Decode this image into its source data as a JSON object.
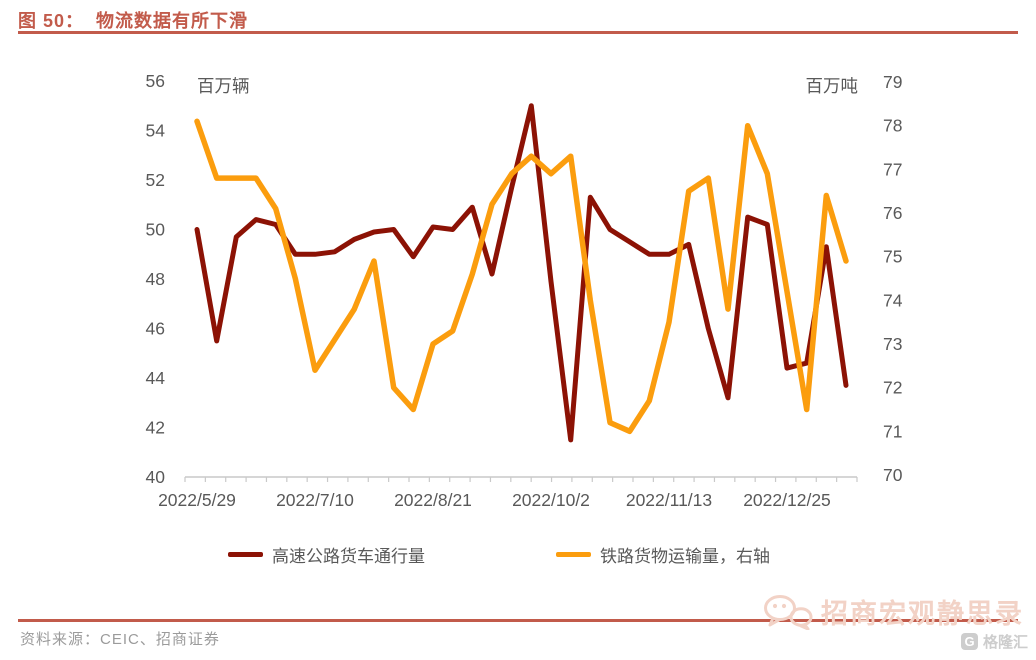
{
  "figure": {
    "title": "图 50：  物流数据有所下滑",
    "source_label": "资料来源：CEIC、招商证券",
    "watermark_text": "招商宏观静思录",
    "watermark_logo_badge": "G",
    "watermark_logo_text": "格隆汇",
    "accent_color": "#c25b4b",
    "axis_text_color": "#595959",
    "axis_line_color": "#c9c9c9",
    "source_text_color": "#9b9b9b"
  },
  "chart_data": {
    "type": "line",
    "x": [
      "2022/5/29",
      "2022/6/5",
      "2022/6/12",
      "2022/6/19",
      "2022/6/26",
      "2022/7/3",
      "2022/7/10",
      "2022/7/17",
      "2022/7/24",
      "2022/7/31",
      "2022/8/7",
      "2022/8/14",
      "2022/8/21",
      "2022/8/28",
      "2022/9/4",
      "2022/9/11",
      "2022/9/18",
      "2022/9/25",
      "2022/10/2",
      "2022/10/9",
      "2022/10/16",
      "2022/10/23",
      "2022/10/30",
      "2022/11/6",
      "2022/11/13",
      "2022/11/20",
      "2022/11/27",
      "2022/12/4",
      "2022/12/11",
      "2022/12/18",
      "2022/12/25",
      "2023/1/1",
      "2023/1/8",
      "2023/1/15"
    ],
    "x_tick_every": 6,
    "x_tick_labels": [
      "2022/5/29",
      "2022/7/10",
      "2022/8/21",
      "2022/10/2",
      "2022/11/13",
      "2022/12/25"
    ],
    "left_axis": {
      "label": "百万辆",
      "min": 40,
      "max": 56,
      "step": 2
    },
    "right_axis": {
      "label": "百万吨",
      "min": 70,
      "max": 79,
      "step": 1
    },
    "grid": false,
    "legend_position": "bottom",
    "series": [
      {
        "name": "高速公路货车通行量",
        "axis": "left",
        "color": "#8c1205",
        "values": [
          50.0,
          45.5,
          49.7,
          50.4,
          50.2,
          49.0,
          49.0,
          49.1,
          49.6,
          49.9,
          50.0,
          48.9,
          50.1,
          50.0,
          50.9,
          48.2,
          51.7,
          55.0,
          47.9,
          41.5,
          51.3,
          50.0,
          49.5,
          49.0,
          49.0,
          49.4,
          46.0,
          43.2,
          50.5,
          50.2,
          44.4,
          44.6,
          49.3,
          43.7
        ]
      },
      {
        "name": "铁路货物运输量，右轴",
        "axis": "right",
        "color": "#fb9d0e",
        "values": [
          78.1,
          76.8,
          76.8,
          76.8,
          76.1,
          74.5,
          72.4,
          73.1,
          73.8,
          74.9,
          72.0,
          71.5,
          73.0,
          73.3,
          74.6,
          76.2,
          76.9,
          77.3,
          76.9,
          77.3,
          74.0,
          71.2,
          71.0,
          71.7,
          73.5,
          76.5,
          76.8,
          73.8,
          78.0,
          76.9,
          74.2,
          71.5,
          76.4,
          74.9
        ]
      }
    ]
  }
}
